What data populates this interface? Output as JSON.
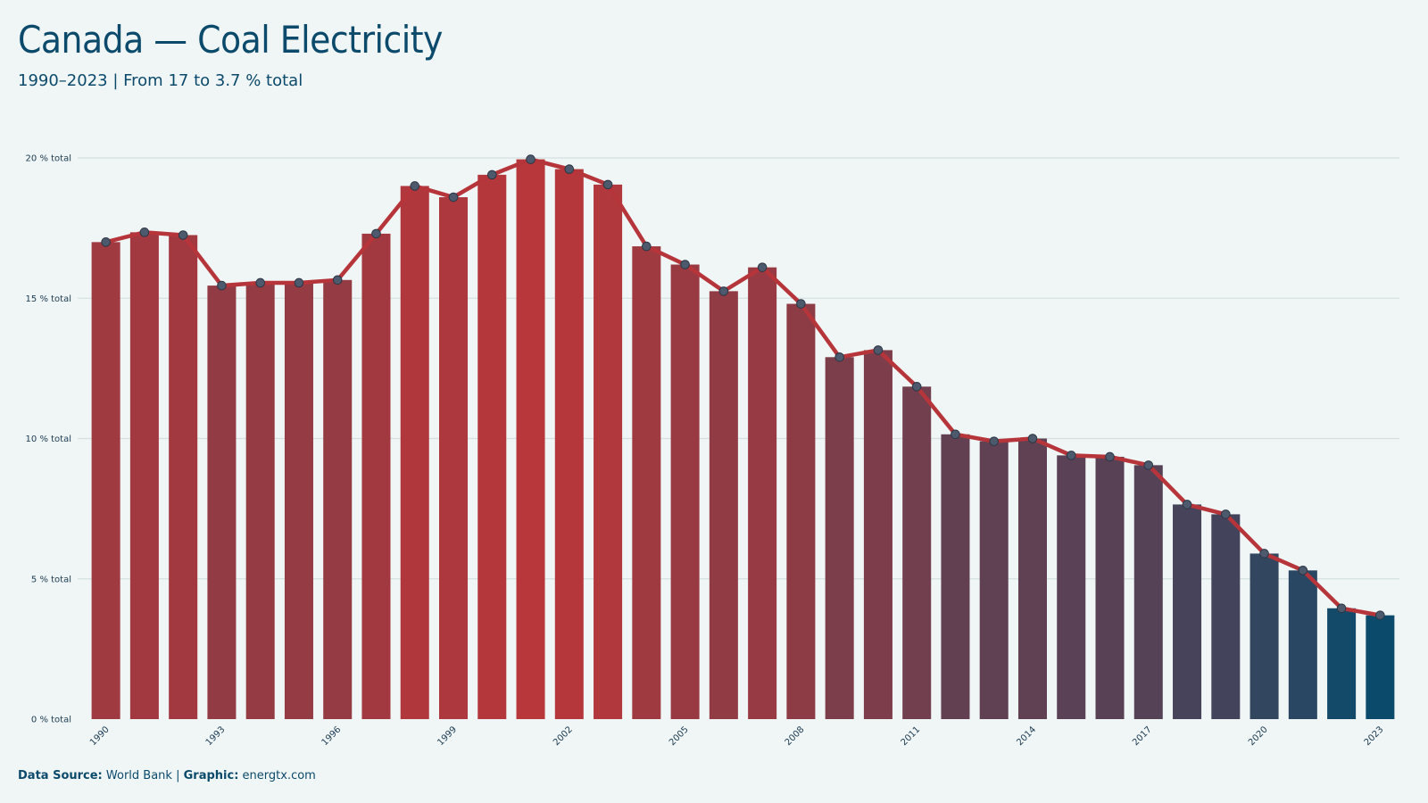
{
  "header": {
    "title": "Canada — Coal Electricity",
    "subtitle": "1990–2023 | From 17 to 3.7 % total"
  },
  "footer": {
    "source_label": "Data Source:",
    "source_value": "World Bank",
    "separator": "|",
    "graphic_label": "Graphic:",
    "graphic_value": "energtx.com"
  },
  "colors": {
    "background": "#f0f5f5",
    "line": "#b5353a",
    "high_bar": "#b8373a",
    "low_bar": "#0b4a6b",
    "grid": "#d4e0e2",
    "text": "#0b4a6b"
  },
  "chart_data": {
    "type": "bar",
    "overlay": "line",
    "ylabel": "",
    "xlabel": "",
    "ylim": [
      0,
      20
    ],
    "y_ticks": [
      0,
      5,
      10,
      15,
      20
    ],
    "y_tick_labels": [
      "0 % total",
      "5 % total",
      "10 % total",
      "15 % total",
      "20 % total"
    ],
    "x_tick_labels": [
      "1990",
      "1993",
      "1996",
      "1999",
      "2002",
      "2005",
      "2008",
      "2011",
      "2014",
      "2017",
      "2020",
      "2023"
    ],
    "grid": "horizontal",
    "categories": [
      1990,
      1991,
      1992,
      1993,
      1994,
      1995,
      1996,
      1997,
      1998,
      1999,
      2000,
      2001,
      2002,
      2003,
      2004,
      2005,
      2006,
      2007,
      2008,
      2009,
      2010,
      2011,
      2012,
      2013,
      2014,
      2015,
      2016,
      2017,
      2018,
      2019,
      2020,
      2021,
      2022,
      2023
    ],
    "values": [
      17.0,
      17.35,
      17.25,
      15.45,
      15.55,
      15.55,
      15.65,
      17.3,
      19.0,
      18.6,
      19.4,
      19.95,
      19.6,
      19.05,
      16.85,
      16.2,
      15.25,
      16.1,
      14.8,
      12.9,
      13.15,
      11.85,
      10.15,
      9.9,
      10.0,
      9.4,
      9.35,
      9.05,
      7.65,
      7.3,
      5.9,
      5.3,
      3.95,
      3.7
    ]
  }
}
